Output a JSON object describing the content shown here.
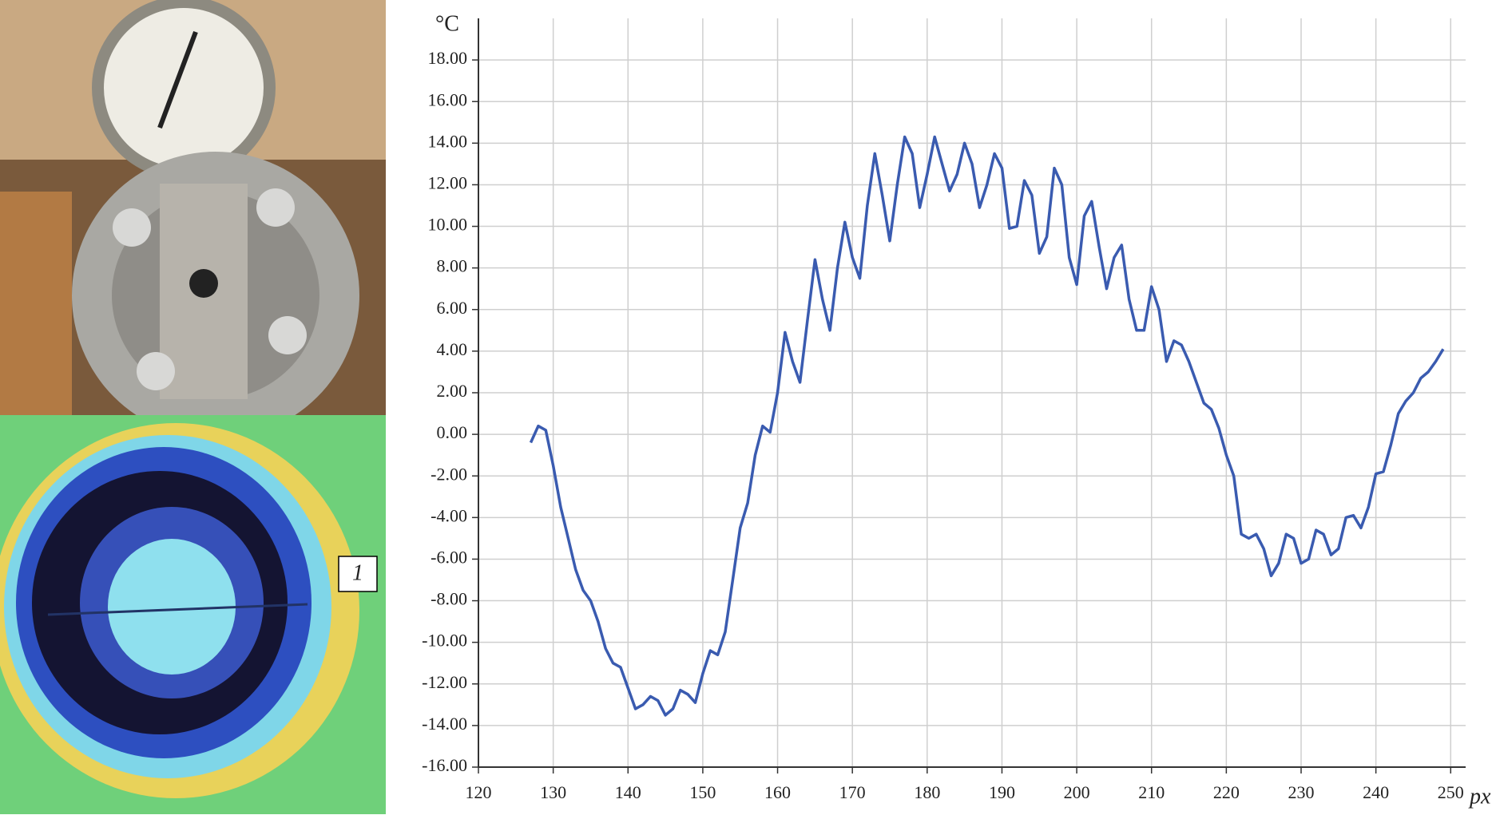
{
  "chart_data": {
    "type": "line",
    "y_label": "°C",
    "x_label": "px",
    "annotations": [
      "1"
    ],
    "x": [
      127,
      128,
      129,
      130,
      131,
      132,
      133,
      134,
      135,
      136,
      137,
      138,
      139,
      140,
      141,
      142,
      143,
      144,
      145,
      146,
      147,
      148,
      149,
      150,
      151,
      152,
      153,
      154,
      155,
      156,
      157,
      158,
      159,
      160,
      161,
      162,
      163,
      164,
      165,
      166,
      167,
      168,
      169,
      170,
      171,
      172,
      173,
      174,
      175,
      176,
      177,
      178,
      179,
      180,
      181,
      182,
      183,
      184,
      185,
      186,
      187,
      188,
      189,
      190,
      191,
      192,
      193,
      194,
      195,
      196,
      197,
      198,
      199,
      200,
      201,
      202,
      203,
      204,
      205,
      206,
      207,
      208,
      209,
      210,
      211,
      212,
      213,
      214,
      215,
      216,
      217,
      218,
      219,
      220,
      221,
      222,
      223,
      224,
      225,
      226,
      227,
      228,
      229,
      230,
      231,
      232,
      233,
      234,
      235,
      236,
      237,
      238,
      239,
      240,
      241,
      242,
      243,
      244,
      245,
      246,
      247,
      248,
      249
    ],
    "values": [
      -0.4,
      0.4,
      0.2,
      -1.5,
      -3.5,
      -5,
      -6.5,
      -7.5,
      -8,
      -9,
      -10.3,
      -11,
      -11.2,
      -12.2,
      -13.2,
      -13,
      -12.6,
      -12.8,
      -13.5,
      -13.2,
      -12.3,
      -12.5,
      -12.9,
      -11.5,
      -10.4,
      -10.6,
      -9.5,
      -7,
      -4.5,
      -3.3,
      -1,
      0.4,
      0.1,
      2,
      4.9,
      3.5,
      2.5,
      5.5,
      8.4,
      6.5,
      5,
      8,
      10.2,
      8.5,
      7.5,
      11,
      13.5,
      11.5,
      9.3,
      12,
      14.3,
      13.5,
      10.9,
      12.5,
      14.3,
      13,
      11.7,
      12.5,
      14,
      13,
      10.9,
      12,
      13.5,
      12.8,
      9.9,
      10,
      12.2,
      11.5,
      8.7,
      9.5,
      12.8,
      12,
      8.5,
      7.2,
      10.5,
      11.2,
      9,
      7,
      8.5,
      9.1,
      6.5,
      5,
      5,
      7.1,
      6,
      3.5,
      4.5,
      4.3,
      3.5,
      2.5,
      1.5,
      1.2,
      0.3,
      -1,
      -2,
      -4.8,
      -5,
      -4.8,
      -5.5,
      -6.8,
      -6.2,
      -4.8,
      -5,
      -6.2,
      -6,
      -4.6,
      -4.8,
      -5.8,
      -5.5,
      -4,
      -3.9,
      -4.5,
      -3.5,
      -1.9,
      -1.8,
      -0.5,
      1,
      1.6,
      2,
      2.7,
      3,
      3.5,
      4.1
    ],
    "color": "#3a5bb0",
    "xlim": [
      120,
      252
    ],
    "ylim": [
      -16,
      20
    ],
    "xticks": [
      120,
      130,
      140,
      150,
      160,
      170,
      180,
      190,
      200,
      210,
      220,
      230,
      240,
      250
    ],
    "yticks": [
      {
        "value": -16,
        "label": "-16.00"
      },
      {
        "value": -14,
        "label": "-14.00"
      },
      {
        "value": -12,
        "label": "-12.00"
      },
      {
        "value": -10,
        "label": "-10.00"
      },
      {
        "value": -8,
        "label": "-8.00"
      },
      {
        "value": -6,
        "label": "-6.00"
      },
      {
        "value": -4,
        "label": "-4.00"
      },
      {
        "value": -2,
        "label": "-2.00"
      },
      {
        "value": 0,
        "label": "0.00"
      },
      {
        "value": 2,
        "label": "2.00"
      },
      {
        "value": 4,
        "label": "4.00"
      },
      {
        "value": 6,
        "label": "6.00"
      },
      {
        "value": 8,
        "label": "8.00"
      },
      {
        "value": 10,
        "label": "10.00"
      },
      {
        "value": 12,
        "label": "12.00"
      },
      {
        "value": 14,
        "label": "14.00"
      },
      {
        "value": 16,
        "label": "16.00"
      },
      {
        "value": 18,
        "label": "18.00"
      }
    ],
    "grid": true
  }
}
